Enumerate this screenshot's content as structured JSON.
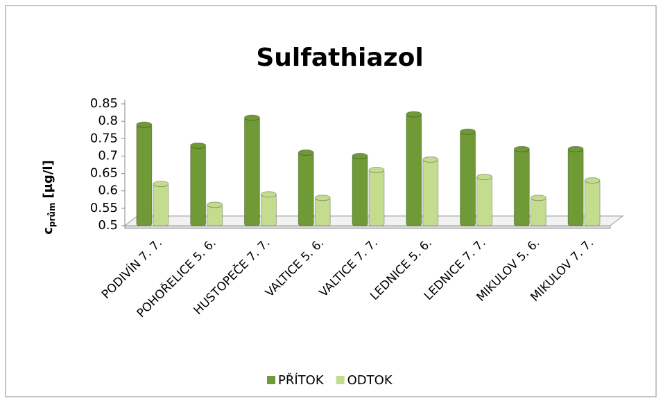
{
  "chart_data": {
    "type": "bar",
    "title": "Sulfathiazol",
    "y_label": {
      "main": "c",
      "sub": "prům",
      "unit": "[µg/l]"
    },
    "categories": [
      "PODIVÍN 7. 7.",
      "POHOŘELICE 5. 6.",
      "HUSTOPEČE 7. 7.",
      "VALTICE 5. 6.",
      "VALTICE 7. 7.",
      "LEDNICE 5. 6.",
      "LEDNICE 7. 7.",
      "MIKULOV 5. 6.",
      "MIKULOV 7. 7."
    ],
    "series": [
      {
        "name": "PŘÍTOK",
        "color": "#6f9a35",
        "values": [
          0.79,
          0.73,
          0.81,
          0.71,
          0.7,
          0.82,
          0.77,
          0.72,
          0.72
        ]
      },
      {
        "name": "ODTOK",
        "color": "#c3dc8e",
        "values": [
          0.62,
          0.56,
          0.59,
          0.58,
          0.66,
          0.69,
          0.64,
          0.58,
          0.63
        ]
      }
    ],
    "ylim": [
      0.5,
      0.85
    ],
    "yticks": [
      0.5,
      0.55,
      0.6,
      0.65,
      0.7,
      0.75,
      0.8,
      0.85
    ],
    "legend": "bottom"
  }
}
